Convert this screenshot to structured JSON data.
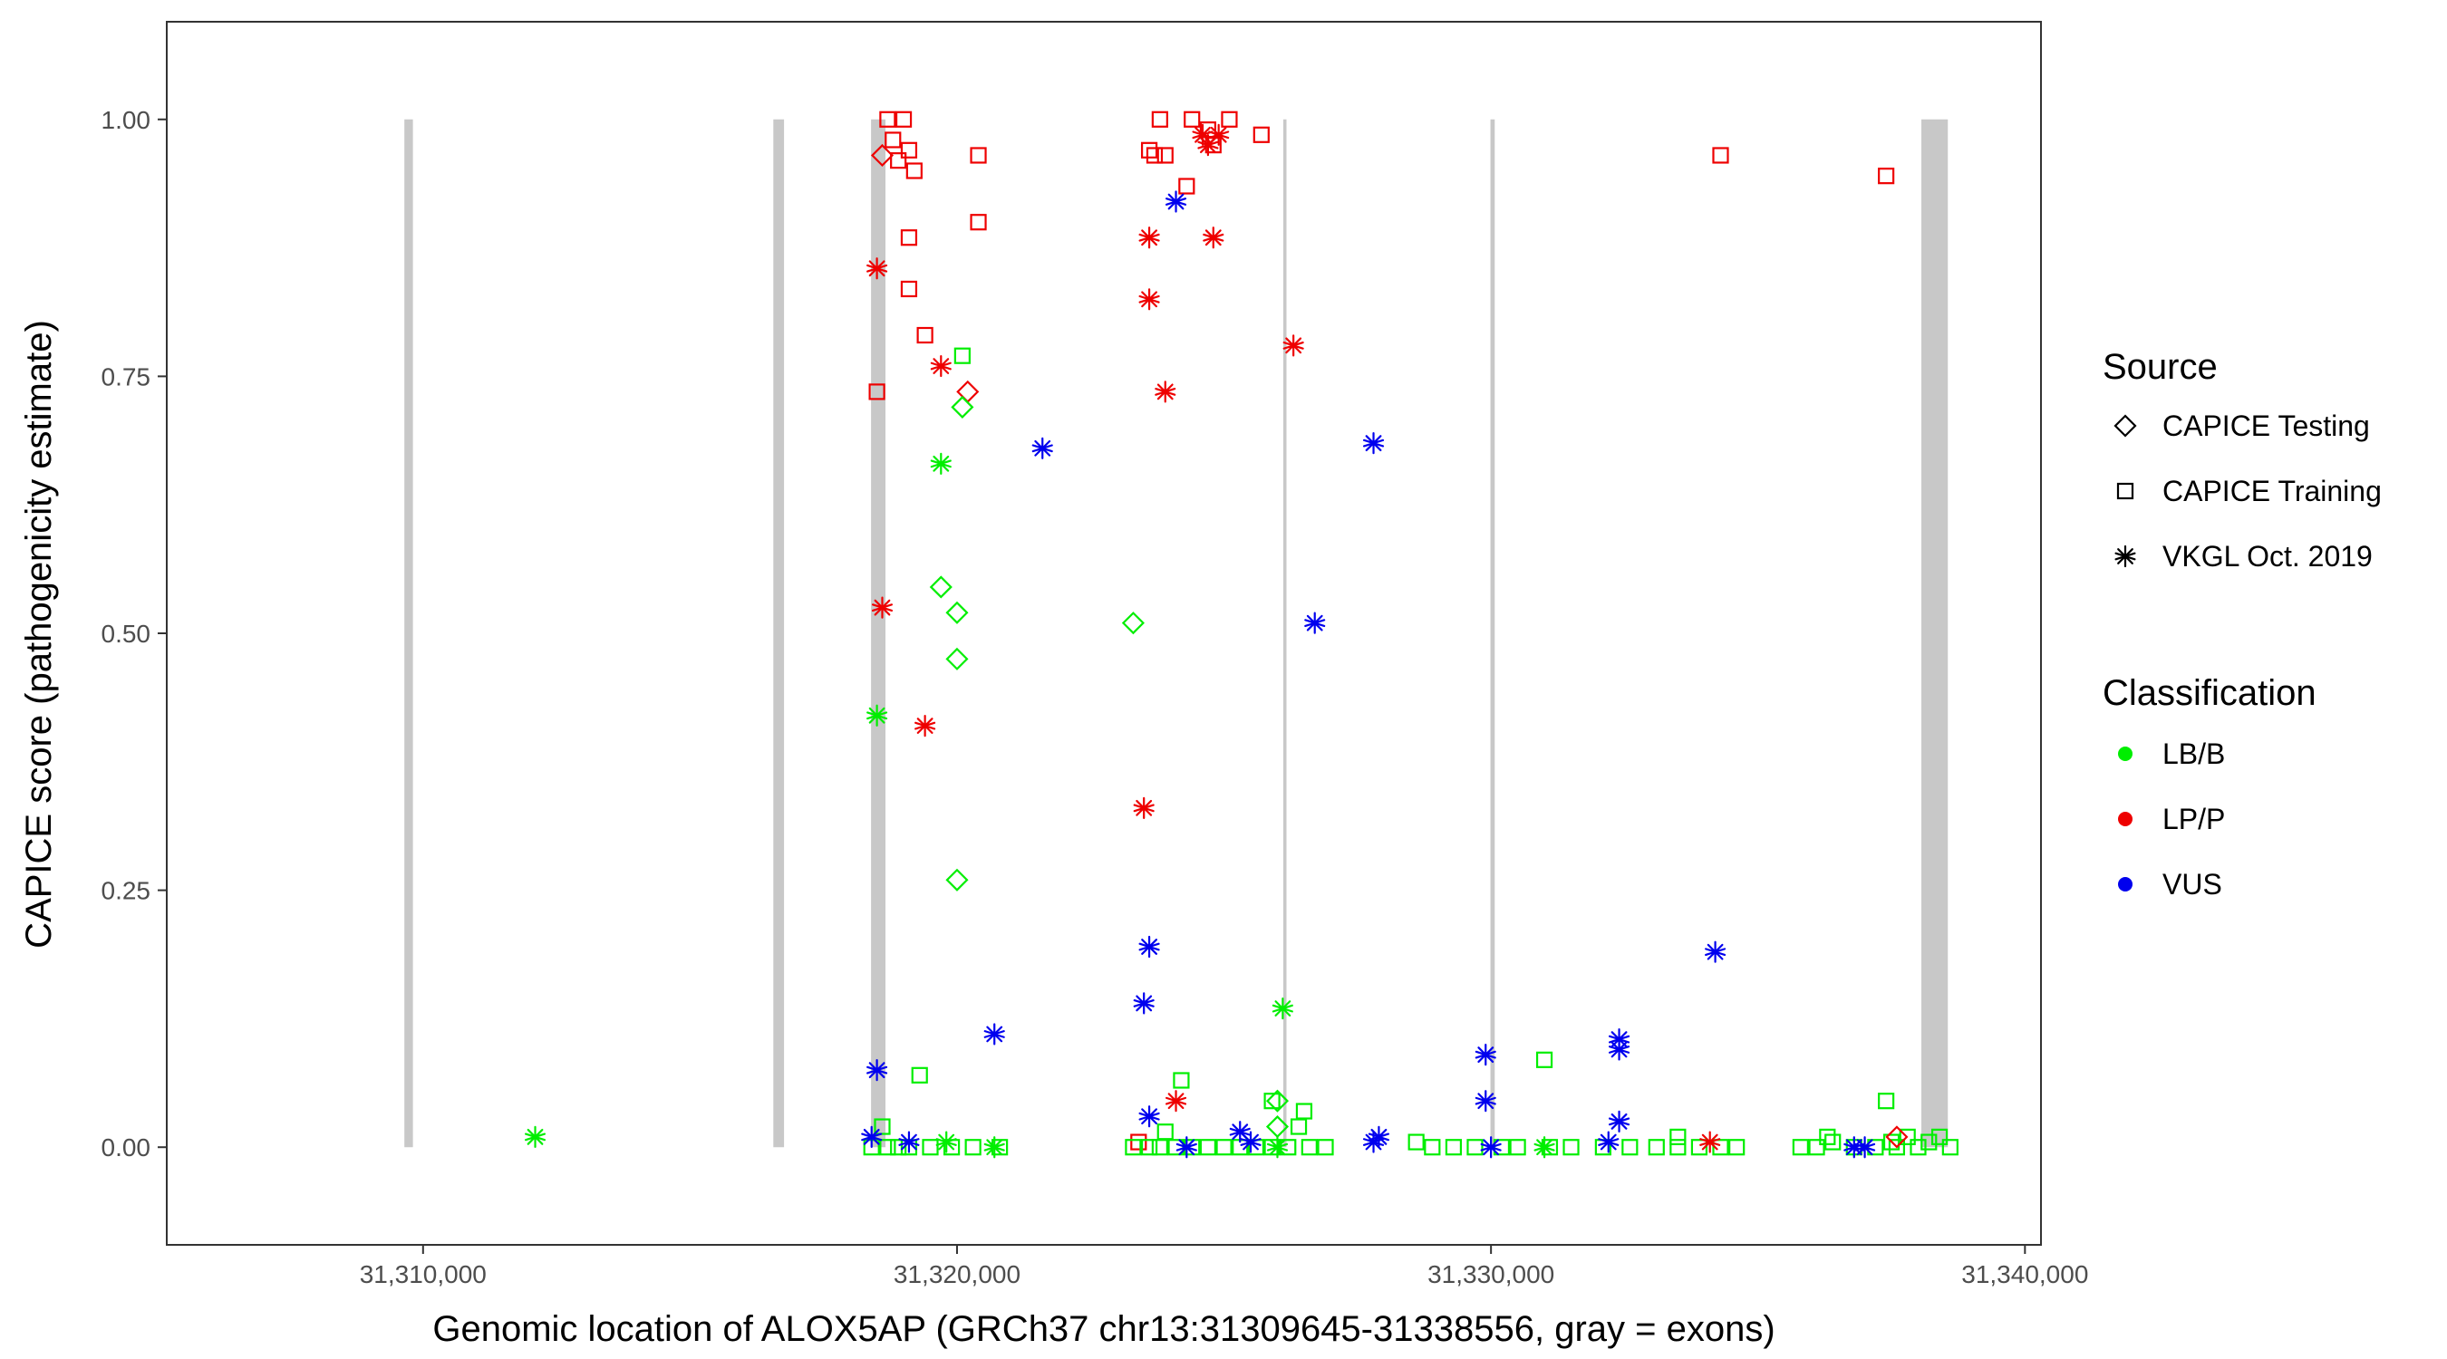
{
  "chart_data": {
    "type": "scatter",
    "title": "",
    "xlabel": "Genomic location of ALOX5AP (GRCh37 chr13:31309645-31338556, gray = exons)",
    "ylabel": "CAPICE score (pathogenicity estimate)",
    "xlim": [
      31305200,
      31340300
    ],
    "ylim": [
      -0.095,
      1.095
    ],
    "x_ticks": [
      31310000,
      31320000,
      31330000,
      31340000
    ],
    "x_tick_labels": [
      "31,310,000",
      "31,320,000",
      "31,330,000",
      "31,340,000"
    ],
    "y_ticks": [
      0,
      0.25,
      0.5,
      0.75,
      1.0
    ],
    "y_tick_labels": [
      "0.00",
      "0.25",
      "0.50",
      "0.75",
      "1.00"
    ],
    "grid": false,
    "exons": [
      {
        "start": 31309650,
        "end": 31309810
      },
      {
        "start": 31316560,
        "end": 31316760
      },
      {
        "start": 31318390,
        "end": 31318660
      },
      {
        "start": 31326110,
        "end": 31326170
      },
      {
        "start": 31329990,
        "end": 31330070
      },
      {
        "start": 31338060,
        "end": 31338556
      }
    ],
    "legend_position": "right",
    "source_legend": {
      "title": "Source",
      "entries": [
        {
          "key": "testing",
          "label": "CAPICE Testing",
          "shape": "diamond"
        },
        {
          "key": "training",
          "label": "CAPICE Training",
          "shape": "square"
        },
        {
          "key": "vkgl",
          "label": "VKGL Oct. 2019",
          "shape": "asterisk"
        }
      ]
    },
    "class_legend": {
      "title": "Classification",
      "entries": [
        {
          "key": "LB",
          "label": "LB/B",
          "color": "#00ee00"
        },
        {
          "key": "LP",
          "label": "LP/P",
          "color": "#ee0000"
        },
        {
          "key": "VUS",
          "label": "VUS",
          "color": "#0000ee"
        }
      ]
    },
    "series": [
      {
        "source": "training",
        "classification": "LP",
        "points": [
          [
            31318700,
            1.0
          ],
          [
            31319000,
            1.0
          ],
          [
            31318800,
            0.98
          ],
          [
            31319100,
            0.97
          ],
          [
            31318900,
            0.96
          ],
          [
            31319200,
            0.95
          ],
          [
            31319100,
            0.885
          ],
          [
            31319100,
            0.835
          ],
          [
            31319400,
            0.79
          ],
          [
            31318500,
            0.735
          ],
          [
            31320400,
            0.965
          ],
          [
            31320400,
            0.9
          ],
          [
            31323600,
            0.97
          ],
          [
            31323800,
            1.0
          ],
          [
            31323700,
            0.965
          ],
          [
            31323900,
            0.965
          ],
          [
            31324400,
            1.0
          ],
          [
            31324700,
            0.99
          ],
          [
            31325100,
            1.0
          ],
          [
            31325700,
            0.985
          ],
          [
            31324800,
            0.975
          ],
          [
            31324300,
            0.935
          ],
          [
            31334300,
            0.965
          ],
          [
            31337400,
            0.945
          ],
          [
            31323400,
            0.005
          ]
        ]
      },
      {
        "source": "training",
        "classification": "LB",
        "points": [
          [
            31320100,
            0.77
          ],
          [
            31319300,
            0.07
          ],
          [
            31318600,
            0.02
          ],
          [
            31324200,
            0.065
          ],
          [
            31323900,
            0.015
          ],
          [
            31325900,
            0.045
          ],
          [
            31326500,
            0.035
          ],
          [
            31326400,
            0.02
          ],
          [
            31331000,
            0.085
          ],
          [
            31333500,
            0.01
          ],
          [
            31336300,
            0.01
          ],
          [
            31337400,
            0.045
          ],
          [
            31318400,
            0.0
          ],
          [
            31318700,
            0.0
          ],
          [
            31318900,
            0.0
          ],
          [
            31319100,
            0.0
          ],
          [
            31319500,
            0.0
          ],
          [
            31319900,
            0.0
          ],
          [
            31320300,
            0.0
          ],
          [
            31320800,
            0.0
          ],
          [
            31323300,
            0.0
          ],
          [
            31323600,
            0.0
          ],
          [
            31323800,
            0.0
          ],
          [
            31324100,
            0.0
          ],
          [
            31324400,
            0.0
          ],
          [
            31324700,
            0.0
          ],
          [
            31325000,
            0.0
          ],
          [
            31325300,
            0.0
          ],
          [
            31325600,
            0.0
          ],
          [
            31325900,
            0.0
          ],
          [
            31326200,
            0.0
          ],
          [
            31326600,
            0.0
          ],
          [
            31326900,
            0.0
          ],
          [
            31328600,
            0.005
          ],
          [
            31328900,
            0.0
          ],
          [
            31329300,
            0.0
          ],
          [
            31329700,
            0.0
          ],
          [
            31330200,
            0.0
          ],
          [
            31330500,
            0.0
          ],
          [
            31331100,
            0.0
          ],
          [
            31331500,
            0.0
          ],
          [
            31332100,
            0.0
          ],
          [
            31332600,
            0.0
          ],
          [
            31333100,
            0.0
          ],
          [
            31333500,
            0.0
          ],
          [
            31333900,
            0.0
          ],
          [
            31334300,
            0.0
          ],
          [
            31334600,
            0.0
          ],
          [
            31335800,
            0.0
          ],
          [
            31336100,
            0.0
          ],
          [
            31336400,
            0.005
          ],
          [
            31336800,
            0.0
          ],
          [
            31337200,
            0.0
          ],
          [
            31337500,
            0.005
          ],
          [
            31337800,
            0.01
          ],
          [
            31338000,
            0.0
          ],
          [
            31338200,
            0.005
          ],
          [
            31338400,
            0.01
          ],
          [
            31338600,
            0.0
          ],
          [
            31337600,
            0.0
          ]
        ]
      },
      {
        "source": "testing",
        "classification": "LP",
        "points": [
          [
            31318600,
            0.965
          ],
          [
            31320200,
            0.735
          ],
          [
            31337600,
            0.01
          ]
        ]
      },
      {
        "source": "testing",
        "classification": "LB",
        "points": [
          [
            31320100,
            0.72
          ],
          [
            31319700,
            0.545
          ],
          [
            31320000,
            0.52
          ],
          [
            31320000,
            0.475
          ],
          [
            31323300,
            0.51
          ],
          [
            31320000,
            0.26
          ],
          [
            31326000,
            0.045
          ],
          [
            31326000,
            0.02
          ]
        ]
      },
      {
        "source": "vkgl",
        "classification": "LP",
        "points": [
          [
            31318500,
            0.855
          ],
          [
            31319700,
            0.76
          ],
          [
            31318600,
            0.525
          ],
          [
            31319400,
            0.41
          ],
          [
            31323600,
            0.885
          ],
          [
            31323600,
            0.825
          ],
          [
            31323900,
            0.735
          ],
          [
            31324800,
            0.885
          ],
          [
            31324600,
            0.985
          ],
          [
            31324700,
            0.975
          ],
          [
            31324900,
            0.985
          ],
          [
            31326300,
            0.78
          ],
          [
            31323500,
            0.33
          ],
          [
            31324100,
            0.045
          ],
          [
            31334100,
            0.005
          ]
        ]
      },
      {
        "source": "vkgl",
        "classification": "VUS",
        "points": [
          [
            31324100,
            0.92
          ],
          [
            31321600,
            0.68
          ],
          [
            31327800,
            0.685
          ],
          [
            31326700,
            0.51
          ],
          [
            31323600,
            0.195
          ],
          [
            31323500,
            0.14
          ],
          [
            31320700,
            0.11
          ],
          [
            31318500,
            0.075
          ],
          [
            31323600,
            0.03
          ],
          [
            31318400,
            0.01
          ],
          [
            31319100,
            0.005
          ],
          [
            31324300,
            0.0
          ],
          [
            31325300,
            0.015
          ],
          [
            31325500,
            0.005
          ],
          [
            31327900,
            0.01
          ],
          [
            31327800,
            0.005
          ],
          [
            31329900,
            0.09
          ],
          [
            31329900,
            0.045
          ],
          [
            31330000,
            0.0
          ],
          [
            31332400,
            0.105
          ],
          [
            31332400,
            0.095
          ],
          [
            31332400,
            0.025
          ],
          [
            31332200,
            0.005
          ],
          [
            31334200,
            0.19
          ],
          [
            31336800,
            0.0
          ],
          [
            31337000,
            0.0
          ]
        ]
      },
      {
        "source": "vkgl",
        "classification": "LB",
        "points": [
          [
            31319700,
            0.665
          ],
          [
            31318500,
            0.42
          ],
          [
            31326100,
            0.135
          ],
          [
            31312100,
            0.01
          ],
          [
            31319800,
            0.005
          ],
          [
            31320700,
            0.0
          ],
          [
            31326000,
            0.0
          ],
          [
            31331000,
            0.0
          ]
        ]
      }
    ]
  }
}
